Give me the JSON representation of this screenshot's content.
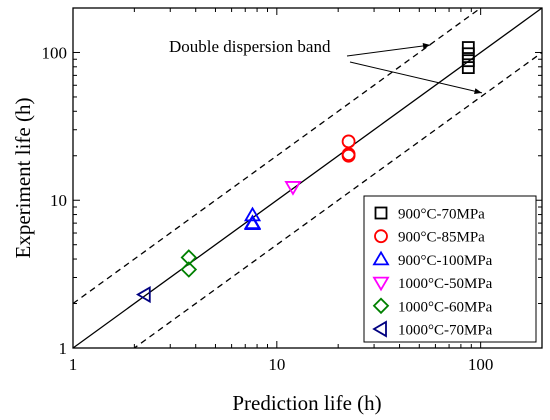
{
  "chart_data": {
    "type": "scatter",
    "xlabel": "Prediction life (h)",
    "ylabel": "Experiment life (h)",
    "xscale": "log",
    "yscale": "log",
    "xlim": [
      1,
      200
    ],
    "ylim": [
      1,
      200
    ],
    "x_ticks": [
      {
        "value": 1,
        "label": "1"
      },
      {
        "value": 10,
        "label": "10"
      },
      {
        "value": 100,
        "label": "100"
      }
    ],
    "y_ticks": [
      {
        "value": 1,
        "label": "1"
      },
      {
        "value": 10,
        "label": "10"
      },
      {
        "value": 100,
        "label": "100"
      }
    ],
    "grid": false,
    "legend_position": "bottom-right",
    "annotation": "Double dispersion band",
    "reference_lines": [
      {
        "kind": "identity",
        "slope_factor": 1,
        "style": "solid"
      },
      {
        "kind": "upper-band",
        "slope_factor": 2,
        "style": "dashed"
      },
      {
        "kind": "lower-band",
        "slope_factor": 0.5,
        "style": "dashed"
      }
    ],
    "series": [
      {
        "name": "900°C-70MPa",
        "marker": "square",
        "color": "#000000",
        "points": [
          [
            87,
            108
          ],
          [
            87,
            98
          ],
          [
            87,
            88
          ],
          [
            87,
            79
          ]
        ]
      },
      {
        "name": "900°C-85MPa",
        "marker": "circle",
        "color": "#ff0000",
        "points": [
          [
            22.5,
            25
          ],
          [
            22.5,
            20.5
          ],
          [
            22.5,
            20
          ]
        ]
      },
      {
        "name": "900°C-100MPa",
        "marker": "triangle-up",
        "color": "#0000ff",
        "points": [
          [
            7.6,
            7.9
          ],
          [
            7.6,
            7.0
          ],
          [
            7.6,
            6.9
          ]
        ]
      },
      {
        "name": "1000°C-50MPa",
        "marker": "triangle-down",
        "color": "#ff00ff",
        "points": [
          [
            12,
            12.3
          ]
        ]
      },
      {
        "name": "1000°C-60MPa",
        "marker": "diamond",
        "color": "#008000",
        "points": [
          [
            3.7,
            4.1
          ],
          [
            3.7,
            3.4
          ]
        ]
      },
      {
        "name": "1000°C-70MPa",
        "marker": "triangle-left",
        "color": "#000080",
        "points": [
          [
            2.25,
            2.3
          ]
        ]
      }
    ]
  }
}
